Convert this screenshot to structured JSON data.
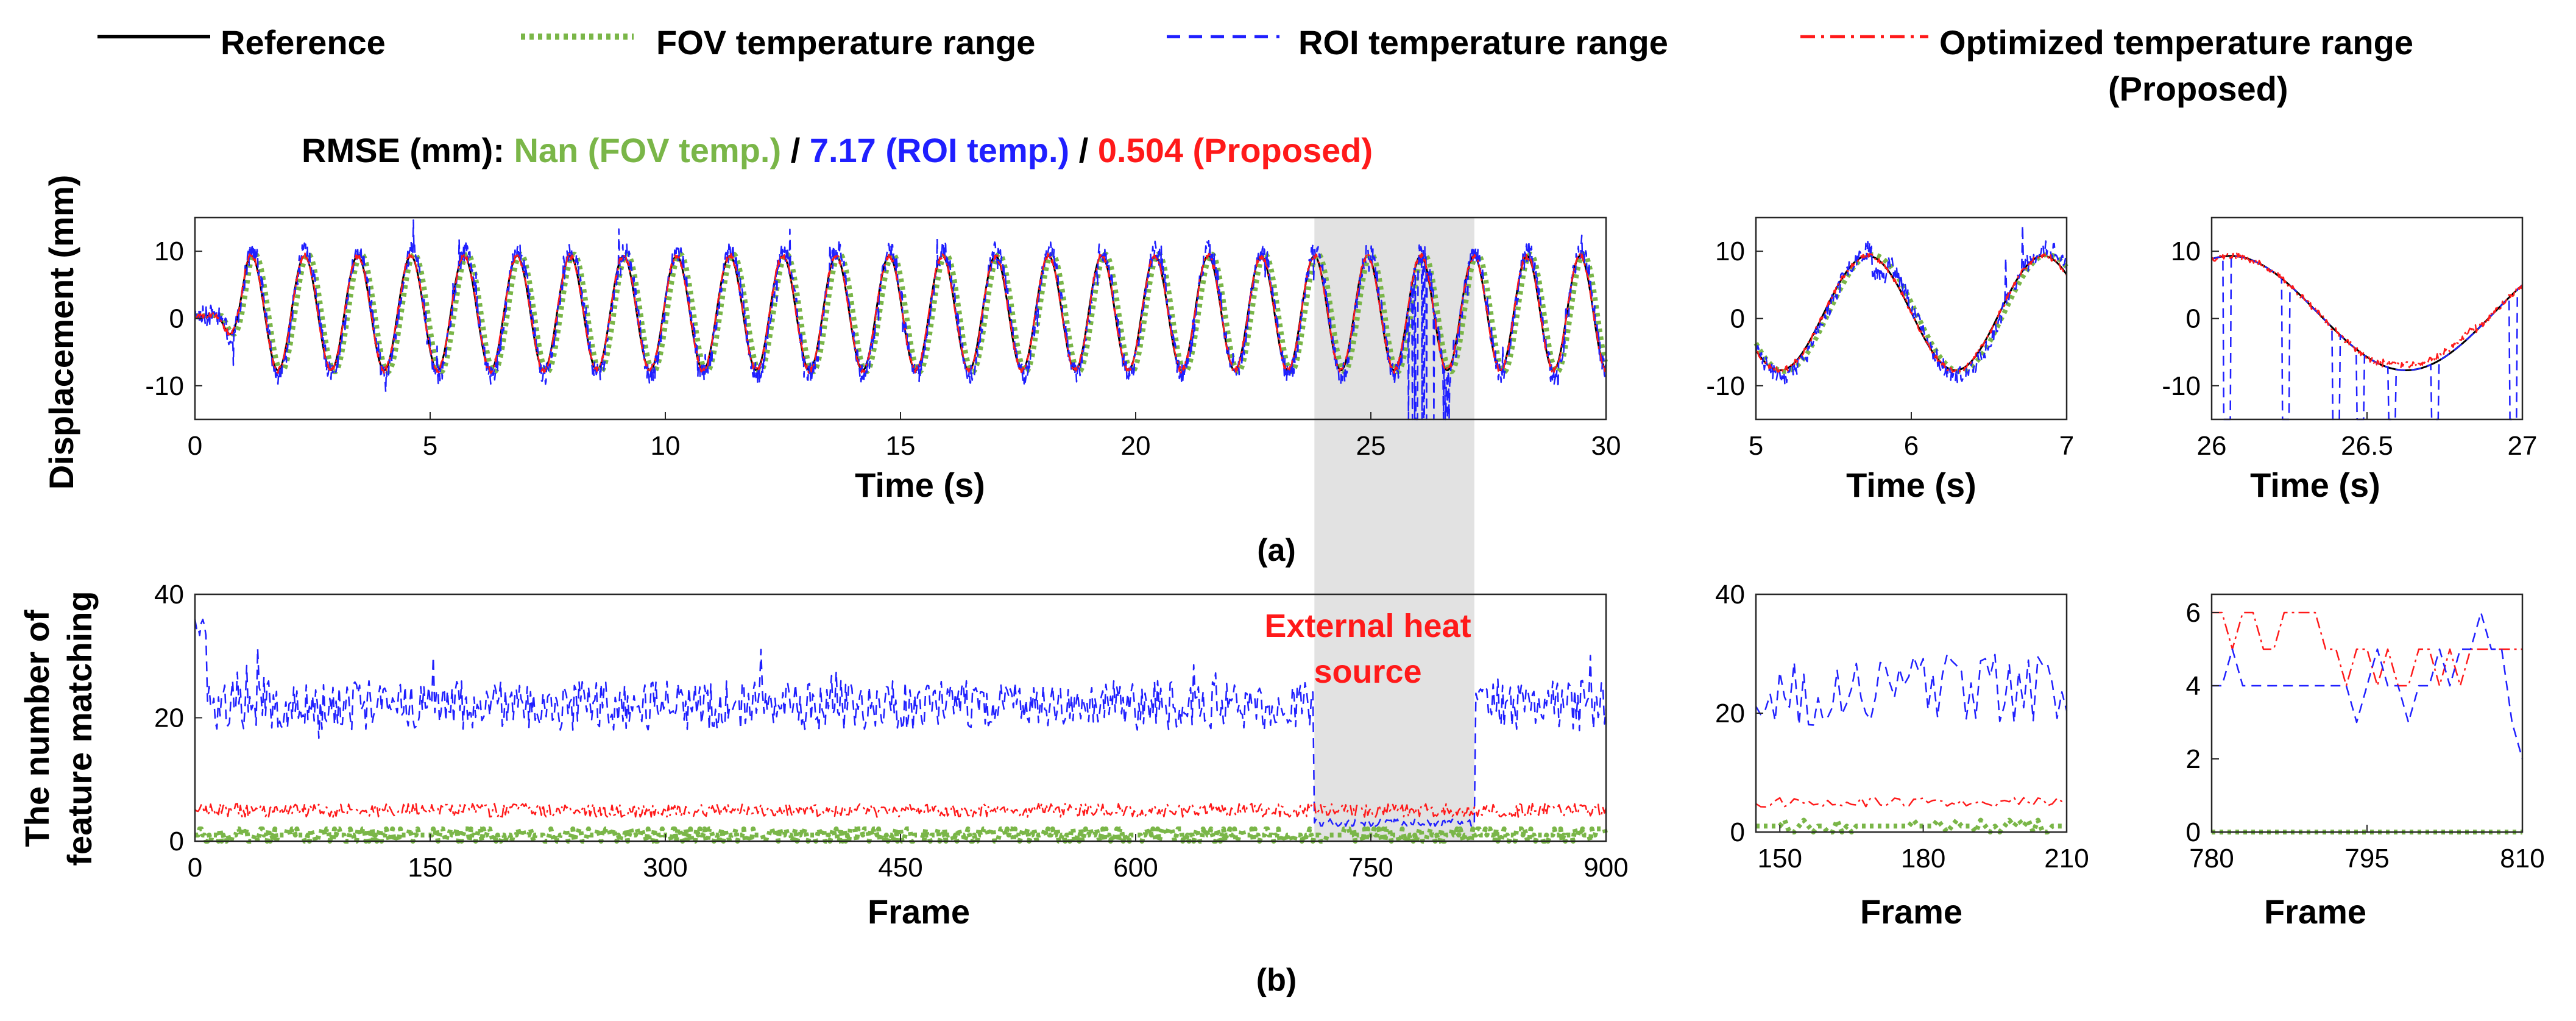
{
  "colors": {
    "reference": "#000000",
    "fov": "#7ab648",
    "roi": "#1f1fff",
    "proposed": "#ff1a1a",
    "shade": "#e2e2e2"
  },
  "legend": {
    "reference": "Reference",
    "fov": "FOV temperature range",
    "roi": "ROI temperature range",
    "proposed_line1": "Optimized temperature range",
    "proposed_line2": "(Proposed)"
  },
  "rmse": {
    "prefix": "RMSE (mm): ",
    "fov": "Nan (FOV temp.)",
    "sep1": " / ",
    "roi": "7.17 (ROI temp.)",
    "sep2": " / ",
    "proposed": "0.504 (Proposed)"
  },
  "annotation": {
    "line1": "External heat",
    "line2": "source"
  },
  "labels": {
    "a": "(a)",
    "b": "(b)"
  },
  "chart_data": [
    {
      "id": "a-main",
      "type": "line",
      "title": "",
      "xlabel": "Time (s)",
      "ylabel": "Displacement (mm)",
      "xlim": [
        0,
        30
      ],
      "ylim": [
        -15,
        15
      ],
      "xticks": [
        0,
        5,
        10,
        15,
        20,
        25,
        30
      ],
      "yticks": [
        -10,
        0,
        10
      ],
      "shaded_region": [
        23.8,
        27.2
      ],
      "signal": {
        "period_s": 1.13,
        "amplitude_mm": 8.5,
        "peak_start_s": 1.2,
        "start_ramp_s": 0.5
      },
      "series": [
        {
          "name": "Reference",
          "style": "solid"
        },
        {
          "name": "FOV temperature range",
          "style": "dotted"
        },
        {
          "name": "ROI temperature range",
          "style": "dashed",
          "notes": "noisy; large dropouts to about -15 inside the shaded region"
        },
        {
          "name": "Optimized temperature range (Proposed)",
          "style": "dashdot"
        }
      ]
    },
    {
      "id": "a-zoom1",
      "type": "line",
      "xlabel": "Time (s)",
      "xlim": [
        5,
        7
      ],
      "ylim": [
        -15,
        15
      ],
      "xticks": [
        5,
        6,
        7
      ],
      "yticks": [
        -10,
        0,
        10
      ],
      "series": [
        {
          "name": "Reference"
        },
        {
          "name": "FOV temperature range"
        },
        {
          "name": "ROI temperature range"
        },
        {
          "name": "Optimized temperature range (Proposed)"
        }
      ]
    },
    {
      "id": "a-zoom2",
      "type": "line",
      "xlabel": "Time (s)",
      "xlim": [
        26,
        27
      ],
      "ylim": [
        -15,
        15
      ],
      "xticks": [
        26,
        26.5,
        27
      ],
      "yticks": [
        -10,
        0,
        10
      ],
      "series": [
        {
          "name": "Reference"
        },
        {
          "name": "ROI temperature range",
          "dropouts_s": [
            26.05,
            26.24,
            26.4,
            26.48,
            26.58,
            26.72,
            26.97
          ]
        },
        {
          "name": "Optimized temperature range (Proposed)"
        }
      ]
    },
    {
      "id": "b-main",
      "type": "line",
      "xlabel": "Frame",
      "ylabel": "The number of feature matching",
      "xlim": [
        0,
        900
      ],
      "ylim": [
        0,
        40
      ],
      "xticks": [
        0,
        150,
        300,
        450,
        600,
        750,
        900
      ],
      "yticks": [
        0,
        20,
        40
      ],
      "shaded_region": [
        714,
        816
      ],
      "series": [
        {
          "name": "ROI temperature range",
          "typical": 22,
          "range": [
            16,
            37
          ],
          "in_shaded_region": 3
        },
        {
          "name": "Optimized temperature range (Proposed)",
          "typical": 5,
          "range": [
            3,
            7
          ]
        },
        {
          "name": "FOV temperature range",
          "typical": 1,
          "range": [
            0,
            2
          ]
        }
      ]
    },
    {
      "id": "b-zoom1",
      "type": "line",
      "xlabel": "Frame",
      "xlim": [
        145,
        210
      ],
      "ylim": [
        0,
        40
      ],
      "xticks": [
        150,
        180,
        210
      ],
      "yticks": [
        0,
        20,
        40
      ],
      "series": [
        {
          "name": "ROI temperature range",
          "range": [
            17,
            31
          ]
        },
        {
          "name": "Optimized temperature range (Proposed)",
          "range": [
            4,
            7
          ]
        },
        {
          "name": "FOV temperature range",
          "range": [
            0,
            2
          ]
        }
      ]
    },
    {
      "id": "b-zoom2",
      "type": "line",
      "xlabel": "Frame",
      "xlim": [
        780,
        810
      ],
      "ylim": [
        0,
        6.5
      ],
      "xticks": [
        780,
        795,
        810
      ],
      "yticks": [
        0,
        2,
        4,
        6
      ],
      "series": [
        {
          "name": "Optimized temperature range (Proposed)",
          "range": [
            4,
            6
          ]
        },
        {
          "name": "ROI temperature range",
          "range": [
            2,
            6
          ]
        },
        {
          "name": "FOV temperature range",
          "value": 0
        }
      ]
    }
  ]
}
